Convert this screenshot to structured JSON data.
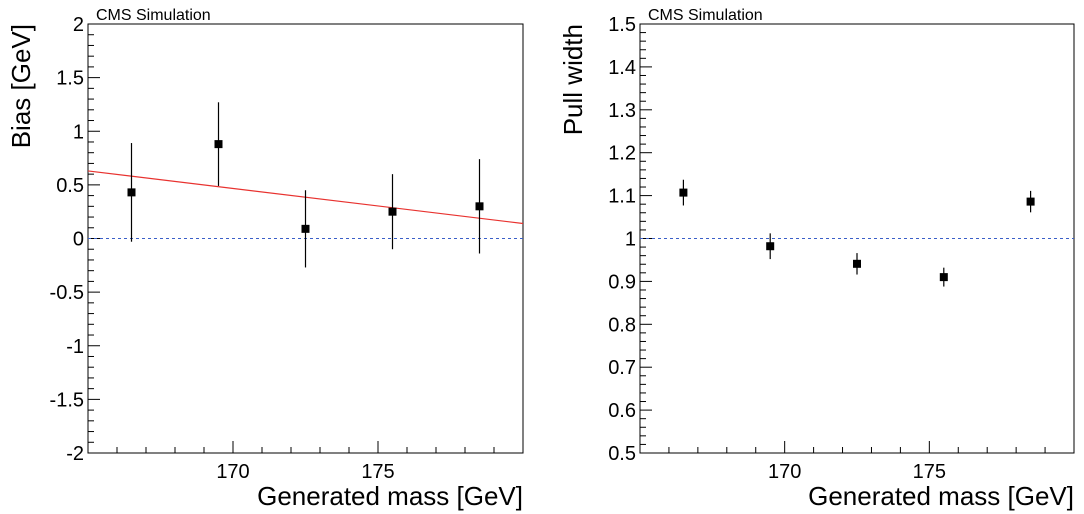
{
  "chart_data": [
    {
      "type": "scatter",
      "tag": "CMS Simulation",
      "xlabel": "Generated mass [GeV]",
      "ylabel": "Bias [GeV]",
      "xlim": [
        165,
        180
      ],
      "ylim": [
        -2,
        2
      ],
      "xticks": [
        "170",
        "175"
      ],
      "yticks": [
        "-2",
        "-1.5",
        "-1",
        "-0.5",
        "0",
        "0.5",
        "1",
        "1.5",
        "2"
      ],
      "points": [
        {
          "x": 166.5,
          "y": 0.43,
          "err": 0.46
        },
        {
          "x": 169.5,
          "y": 0.88,
          "err": 0.39
        },
        {
          "x": 172.5,
          "y": 0.09,
          "err": 0.36
        },
        {
          "x": 175.5,
          "y": 0.25,
          "err": 0.35
        },
        {
          "x": 178.5,
          "y": 0.3,
          "err": 0.44
        }
      ],
      "fit_line": {
        "x": [
          165,
          180
        ],
        "y": [
          0.63,
          0.14
        ],
        "color": "#e8322f"
      },
      "reference_line": {
        "y": 0,
        "color": "#3a5fc8",
        "style": "dashed"
      },
      "marker_color": "#000000"
    },
    {
      "type": "scatter",
      "tag": "CMS Simulation",
      "xlabel": "Generated mass [GeV]",
      "ylabel": "Pull width",
      "xlim": [
        165,
        180
      ],
      "ylim": [
        0.5,
        1.5
      ],
      "xticks": [
        "170",
        "175"
      ],
      "yticks": [
        "0.5",
        "0.6",
        "0.7",
        "0.8",
        "0.9",
        "1",
        "1.1",
        "1.2",
        "1.3",
        "1.4",
        "1.5"
      ],
      "points": [
        {
          "x": 166.5,
          "y": 1.107,
          "err": 0.03
        },
        {
          "x": 169.5,
          "y": 0.982,
          "err": 0.03
        },
        {
          "x": 172.5,
          "y": 0.941,
          "err": 0.025
        },
        {
          "x": 175.5,
          "y": 0.91,
          "err": 0.022
        },
        {
          "x": 178.5,
          "y": 1.086,
          "err": 0.025
        }
      ],
      "reference_line": {
        "y": 1,
        "color": "#3a5fc8",
        "style": "dashed"
      },
      "marker_color": "#000000"
    }
  ]
}
